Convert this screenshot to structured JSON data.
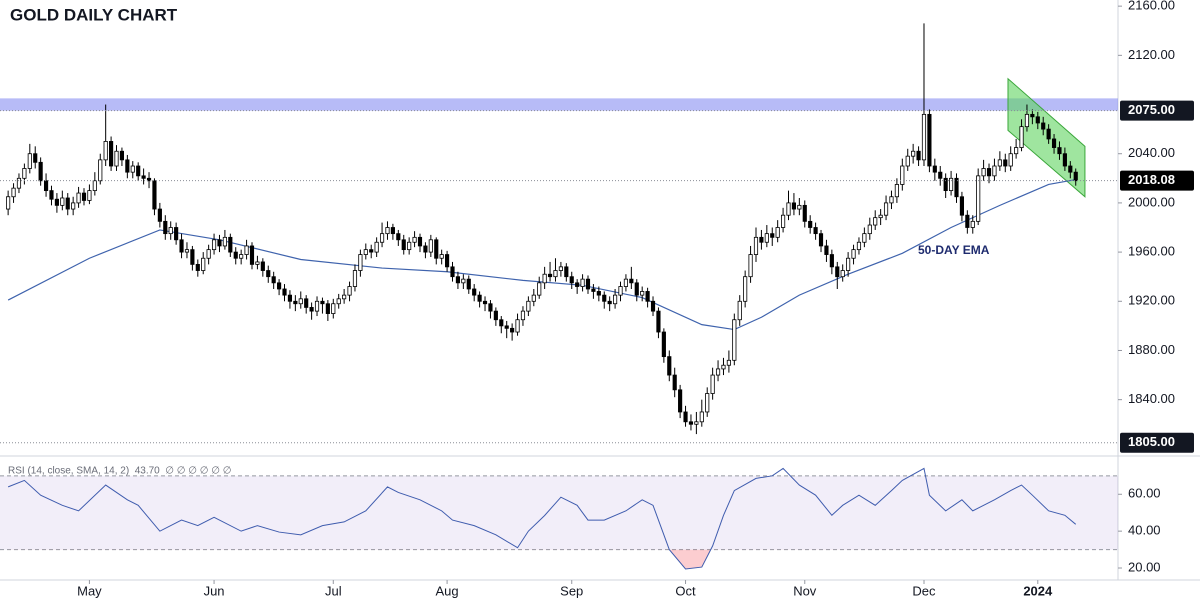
{
  "chart_data": {
    "type": "candlestick",
    "title": "GOLD DAILY CHART",
    "xlim": [
      -1.5,
      204.8
    ],
    "xticks": [
      {
        "value": 15,
        "label": "May"
      },
      {
        "value": 38,
        "label": "Jun"
      },
      {
        "value": 60,
        "label": "Jul"
      },
      {
        "value": 81,
        "label": "Aug"
      },
      {
        "value": 104,
        "label": "Sep"
      },
      {
        "value": 125,
        "label": "Oct"
      },
      {
        "value": 147,
        "label": "Nov"
      },
      {
        "value": 169,
        "label": "Dec"
      },
      {
        "value": 190,
        "label": "2024"
      }
    ],
    "ylim": [
      1795,
      2165
    ],
    "yticks": [
      {
        "value": 2160,
        "label": "2160.00"
      },
      {
        "value": 2120,
        "label": "2120.00"
      },
      {
        "value": 2040,
        "label": "2040.00"
      },
      {
        "value": 2000,
        "label": "2000.00"
      },
      {
        "value": 1960,
        "label": "1960.00"
      },
      {
        "value": 1920,
        "label": "1920.00"
      },
      {
        "value": 1880,
        "label": "1880.00"
      },
      {
        "value": 1840,
        "label": "1840.00"
      }
    ],
    "up_color": "#ffffff",
    "down_color": "#000000",
    "candles": [
      [
        1995,
        2010,
        1990,
        2005
      ],
      [
        2005,
        2016,
        2000,
        2012
      ],
      [
        2012,
        2024,
        2008,
        2020
      ],
      [
        2020,
        2032,
        2015,
        2028
      ],
      [
        2028,
        2048,
        2024,
        2040
      ],
      [
        2040,
        2046,
        2028,
        2033
      ],
      [
        2033,
        2037,
        2014,
        2018
      ],
      [
        2018,
        2024,
        2005,
        2010
      ],
      [
        2010,
        2014,
        1998,
        2003
      ],
      [
        2003,
        2008,
        1992,
        1998
      ],
      [
        1998,
        2010,
        1994,
        2004
      ],
      [
        2004,
        2008,
        1990,
        1995
      ],
      [
        1995,
        2005,
        1990,
        2000
      ],
      [
        2000,
        2013,
        1996,
        2008
      ],
      [
        2008,
        2012,
        1998,
        2002
      ],
      [
        2002,
        2015,
        1999,
        2010
      ],
      [
        2010,
        2025,
        2006,
        2018
      ],
      [
        2018,
        2040,
        2015,
        2035
      ],
      [
        2035,
        2080,
        2030,
        2050
      ],
      [
        2050,
        2054,
        2026,
        2030
      ],
      [
        2030,
        2047,
        2026,
        2042
      ],
      [
        2042,
        2045,
        2030,
        2035
      ],
      [
        2035,
        2039,
        2020,
        2025
      ],
      [
        2025,
        2034,
        2020,
        2030
      ],
      [
        2030,
        2033,
        2018,
        2022
      ],
      [
        2022,
        2028,
        2015,
        2020
      ],
      [
        2020,
        2025,
        2012,
        2018
      ],
      [
        2018,
        2020,
        1990,
        1995
      ],
      [
        1995,
        2000,
        1980,
        1985
      ],
      [
        1985,
        1990,
        1970,
        1975
      ],
      [
        1975,
        1985,
        1970,
        1980
      ],
      [
        1980,
        1984,
        1966,
        1970
      ],
      [
        1970,
        1975,
        1955,
        1960
      ],
      [
        1960,
        1968,
        1955,
        1962
      ],
      [
        1962,
        1965,
        1945,
        1950
      ],
      [
        1950,
        1954,
        1940,
        1945
      ],
      [
        1945,
        1960,
        1942,
        1955
      ],
      [
        1955,
        1966,
        1950,
        1962
      ],
      [
        1962,
        1975,
        1958,
        1970
      ],
      [
        1970,
        1974,
        1960,
        1965
      ],
      [
        1965,
        1978,
        1962,
        1972
      ],
      [
        1972,
        1975,
        1956,
        1960
      ],
      [
        1960,
        1964,
        1950,
        1955
      ],
      [
        1955,
        1962,
        1950,
        1958
      ],
      [
        1958,
        1970,
        1954,
        1965
      ],
      [
        1965,
        1968,
        1946,
        1950
      ],
      [
        1950,
        1957,
        1946,
        1952
      ],
      [
        1952,
        1955,
        1940,
        1945
      ],
      [
        1945,
        1949,
        1935,
        1940
      ],
      [
        1940,
        1944,
        1930,
        1935
      ],
      [
        1935,
        1938,
        1925,
        1930
      ],
      [
        1930,
        1934,
        1920,
        1925
      ],
      [
        1925,
        1929,
        1914,
        1920
      ],
      [
        1920,
        1925,
        1912,
        1918
      ],
      [
        1918,
        1928,
        1914,
        1922
      ],
      [
        1922,
        1925,
        1910,
        1915
      ],
      [
        1915,
        1919,
        1905,
        1912
      ],
      [
        1912,
        1924,
        1908,
        1920
      ],
      [
        1920,
        1923,
        1910,
        1918
      ],
      [
        1918,
        1921,
        1904,
        1910
      ],
      [
        1910,
        1922,
        1906,
        1918
      ],
      [
        1918,
        1926,
        1914,
        1922
      ],
      [
        1922,
        1930,
        1918,
        1925
      ],
      [
        1925,
        1936,
        1920,
        1932
      ],
      [
        1932,
        1950,
        1928,
        1945
      ],
      [
        1945,
        1962,
        1940,
        1958
      ],
      [
        1958,
        1967,
        1954,
        1962
      ],
      [
        1962,
        1966,
        1955,
        1960
      ],
      [
        1960,
        1972,
        1956,
        1968
      ],
      [
        1968,
        1984,
        1964,
        1975
      ],
      [
        1975,
        1985,
        1970,
        1980
      ],
      [
        1980,
        1983,
        1970,
        1975
      ],
      [
        1975,
        1978,
        1965,
        1970
      ],
      [
        1970,
        1974,
        1958,
        1962
      ],
      [
        1962,
        1972,
        1958,
        1968
      ],
      [
        1968,
        1977,
        1964,
        1972
      ],
      [
        1972,
        1975,
        1960,
        1965
      ],
      [
        1965,
        1968,
        1955,
        1960
      ],
      [
        1960,
        1974,
        1956,
        1970
      ],
      [
        1970,
        1972,
        1950,
        1955
      ],
      [
        1955,
        1962,
        1950,
        1958
      ],
      [
        1958,
        1961,
        1944,
        1948
      ],
      [
        1948,
        1952,
        1936,
        1940
      ],
      [
        1940,
        1944,
        1930,
        1935
      ],
      [
        1935,
        1942,
        1930,
        1938
      ],
      [
        1938,
        1941,
        1926,
        1930
      ],
      [
        1930,
        1934,
        1920,
        1925
      ],
      [
        1925,
        1928,
        1915,
        1920
      ],
      [
        1920,
        1924,
        1912,
        1918
      ],
      [
        1918,
        1921,
        1906,
        1912
      ],
      [
        1912,
        1915,
        1900,
        1905
      ],
      [
        1905,
        1908,
        1894,
        1900
      ],
      [
        1900,
        1904,
        1890,
        1898
      ],
      [
        1898,
        1902,
        1888,
        1895
      ],
      [
        1895,
        1910,
        1892,
        1905
      ],
      [
        1905,
        1916,
        1900,
        1912
      ],
      [
        1912,
        1924,
        1908,
        1920
      ],
      [
        1920,
        1930,
        1916,
        1925
      ],
      [
        1925,
        1940,
        1922,
        1935
      ],
      [
        1935,
        1948,
        1930,
        1942
      ],
      [
        1942,
        1952,
        1936,
        1940
      ],
      [
        1940,
        1955,
        1936,
        1945
      ],
      [
        1945,
        1952,
        1940,
        1948
      ],
      [
        1948,
        1951,
        1936,
        1940
      ],
      [
        1940,
        1944,
        1930,
        1935
      ],
      [
        1935,
        1938,
        1926,
        1932
      ],
      [
        1932,
        1942,
        1928,
        1938
      ],
      [
        1938,
        1941,
        1926,
        1930
      ],
      [
        1930,
        1934,
        1922,
        1928
      ],
      [
        1928,
        1932,
        1920,
        1925
      ],
      [
        1925,
        1928,
        1914,
        1920
      ],
      [
        1920,
        1924,
        1912,
        1918
      ],
      [
        1918,
        1930,
        1914,
        1925
      ],
      [
        1925,
        1936,
        1920,
        1932
      ],
      [
        1932,
        1942,
        1928,
        1938
      ],
      [
        1938,
        1948,
        1930,
        1935
      ],
      [
        1935,
        1938,
        1920,
        1925
      ],
      [
        1925,
        1932,
        1920,
        1928
      ],
      [
        1928,
        1931,
        1915,
        1920
      ],
      [
        1920,
        1924,
        1908,
        1912
      ],
      [
        1912,
        1915,
        1890,
        1895
      ],
      [
        1895,
        1898,
        1870,
        1875
      ],
      [
        1875,
        1880,
        1855,
        1860
      ],
      [
        1860,
        1866,
        1842,
        1848
      ],
      [
        1848,
        1852,
        1825,
        1830
      ],
      [
        1830,
        1835,
        1818,
        1822
      ],
      [
        1822,
        1828,
        1815,
        1820
      ],
      [
        1820,
        1830,
        1812,
        1822
      ],
      [
        1822,
        1840,
        1818,
        1830
      ],
      [
        1830,
        1850,
        1826,
        1845
      ],
      [
        1845,
        1866,
        1840,
        1860
      ],
      [
        1860,
        1872,
        1855,
        1865
      ],
      [
        1865,
        1874,
        1860,
        1868
      ],
      [
        1868,
        1880,
        1862,
        1872
      ],
      [
        1872,
        1910,
        1868,
        1905
      ],
      [
        1905,
        1925,
        1900,
        1920
      ],
      [
        1920,
        1945,
        1915,
        1940
      ],
      [
        1940,
        1965,
        1935,
        1958
      ],
      [
        1958,
        1980,
        1952,
        1972
      ],
      [
        1972,
        1978,
        1962,
        1968
      ],
      [
        1968,
        1982,
        1964,
        1975
      ],
      [
        1975,
        1980,
        1965,
        1972
      ],
      [
        1972,
        1986,
        1968,
        1980
      ],
      [
        1980,
        1996,
        1976,
        1990
      ],
      [
        1990,
        2010,
        1986,
        2000
      ],
      [
        2000,
        2008,
        1990,
        1995
      ],
      [
        1995,
        2004,
        1990,
        1998
      ],
      [
        1998,
        2002,
        1980,
        1985
      ],
      [
        1985,
        1990,
        1975,
        1980
      ],
      [
        1980,
        1984,
        1970,
        1975
      ],
      [
        1975,
        1978,
        1960,
        1965
      ],
      [
        1965,
        1970,
        1952,
        1958
      ],
      [
        1958,
        1962,
        1942,
        1948
      ],
      [
        1948,
        1952,
        1930,
        1940
      ],
      [
        1940,
        1950,
        1936,
        1945
      ],
      [
        1945,
        1960,
        1940,
        1955
      ],
      [
        1955,
        1966,
        1950,
        1962
      ],
      [
        1962,
        1972,
        1958,
        1968
      ],
      [
        1968,
        1980,
        1964,
        1975
      ],
      [
        1975,
        1988,
        1970,
        1982
      ],
      [
        1982,
        1994,
        1978,
        1988
      ],
      [
        1988,
        1995,
        1982,
        1990
      ],
      [
        1990,
        2006,
        1986,
        2000
      ],
      [
        2000,
        2010,
        1995,
        2005
      ],
      [
        2005,
        2020,
        2000,
        2015
      ],
      [
        2015,
        2036,
        2010,
        2030
      ],
      [
        2030,
        2044,
        2026,
        2038
      ],
      [
        2038,
        2048,
        2032,
        2042
      ],
      [
        2042,
        2046,
        2030,
        2035
      ],
      [
        2035,
        2146,
        2030,
        2072
      ],
      [
        2072,
        2076,
        2025,
        2030
      ],
      [
        2030,
        2036,
        2018,
        2025
      ],
      [
        2025,
        2030,
        2014,
        2020
      ],
      [
        2020,
        2024,
        2004,
        2010
      ],
      [
        2010,
        2026,
        2006,
        2020
      ],
      [
        2020,
        2024,
        2000,
        2005
      ],
      [
        2005,
        2009,
        1985,
        1990
      ],
      [
        1990,
        1994,
        1975,
        1980
      ],
      [
        1980,
        1990,
        1975,
        1985
      ],
      [
        1985,
        2028,
        1982,
        2022
      ],
      [
        2022,
        2035,
        2018,
        2028
      ],
      [
        2028,
        2032,
        2016,
        2022
      ],
      [
        2022,
        2036,
        2018,
        2030
      ],
      [
        2030,
        2042,
        2026,
        2035
      ],
      [
        2035,
        2040,
        2025,
        2030
      ],
      [
        2030,
        2046,
        2026,
        2040
      ],
      [
        2040,
        2052,
        2036,
        2045
      ],
      [
        2045,
        2068,
        2042,
        2062
      ],
      [
        2062,
        2080,
        2058,
        2072
      ],
      [
        2072,
        2076,
        2064,
        2070
      ],
      [
        2070,
        2074,
        2060,
        2065
      ],
      [
        2065,
        2070,
        2055,
        2060
      ],
      [
        2060,
        2064,
        2048,
        2052
      ],
      [
        2052,
        2056,
        2040,
        2045
      ],
      [
        2045,
        2050,
        2035,
        2040
      ],
      [
        2040,
        2045,
        2026,
        2030
      ],
      [
        2030,
        2034,
        2020,
        2025
      ],
      [
        2025,
        2028,
        2014,
        2018.08
      ]
    ],
    "ema": {
      "name": "50-DAY EMA",
      "color": "#3f63ad",
      "x": [
        0,
        15,
        28,
        39,
        54,
        69,
        81,
        95,
        106,
        117,
        128,
        134,
        139,
        146,
        155,
        165,
        174,
        183,
        192,
        197
      ],
      "values": [
        1921,
        1955,
        1978,
        1970,
        1954,
        1947,
        1944,
        1937,
        1933,
        1923,
        1901,
        1897,
        1907,
        1925,
        1942,
        1959,
        1980,
        1998,
        2015,
        2019
      ]
    },
    "resistance_zone": {
      "range": [
        2075,
        2085
      ],
      "color": "#7b83f0"
    },
    "price_labels": [
      {
        "value": 2075,
        "label": "2075.00"
      },
      {
        "value": 2018.08,
        "label": "2018.08"
      },
      {
        "value": 1805,
        "label": "1805.00"
      }
    ],
    "channel": {
      "x": [
        184.5,
        198.7
      ],
      "upper": [
        2101,
        2046
      ],
      "lower": [
        2059,
        2005
      ],
      "color": "#5fd35f"
    },
    "rsi": {
      "legend": "RSI (14, close, SMA, 14, 2)  43.70  ∅ ∅ ∅ ∅ ∅ ∅",
      "color": "#3f5cae",
      "ylim": [
        13.5,
        77.5
      ],
      "yticks": [
        {
          "value": 60,
          "label": "60.00"
        },
        {
          "value": 40,
          "label": "40.00"
        },
        {
          "value": 20,
          "label": "20.00"
        }
      ],
      "bands": [
        30,
        70
      ],
      "x": [
        0,
        3,
        6,
        10,
        13,
        18,
        22,
        24,
        28,
        32,
        35,
        38,
        43,
        46,
        50,
        54,
        58,
        62,
        66,
        70,
        72,
        76,
        80,
        82,
        86,
        90,
        94,
        96,
        99,
        102,
        105,
        107,
        110,
        114,
        117,
        119,
        122,
        125,
        128,
        130,
        132,
        134,
        138,
        141,
        143,
        146,
        149,
        152,
        154,
        157,
        160,
        163,
        165,
        169,
        170,
        173,
        176,
        178,
        182,
        185,
        187,
        189,
        192,
        195,
        197
      ],
      "values": [
        64,
        67.5,
        59.5,
        54,
        51,
        65,
        57,
        54,
        40,
        46,
        43,
        47.5,
        40,
        43,
        39.5,
        38,
        43,
        45,
        51,
        64,
        61,
        57,
        51,
        46,
        43,
        38,
        31,
        40,
        48.5,
        58.4,
        54,
        46,
        46,
        51,
        57,
        54,
        30,
        19.5,
        20.5,
        32,
        48.5,
        62,
        68.6,
        70,
        74,
        65,
        59.5,
        48.6,
        54,
        59.5,
        54,
        62,
        67.5,
        74,
        59.5,
        51,
        57,
        51,
        57,
        62,
        65,
        59.5,
        51,
        48.6,
        43.7
      ]
    }
  }
}
